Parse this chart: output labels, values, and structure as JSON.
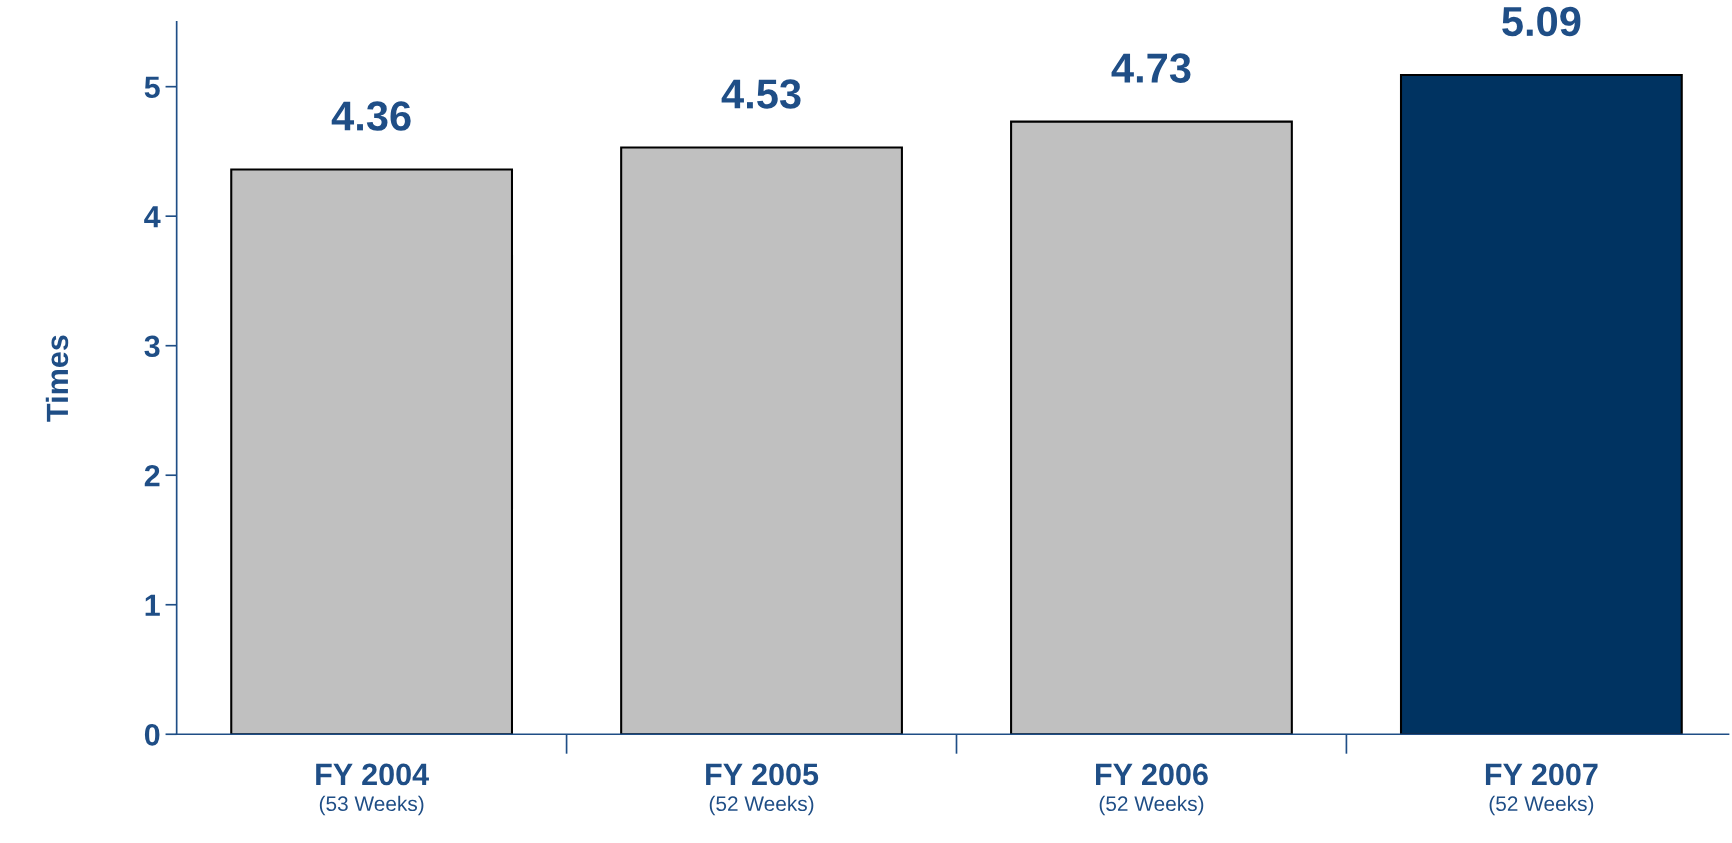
{
  "chart_data": {
    "type": "bar",
    "ylabel": "Times",
    "categories": [
      "FY 2004\n(53 Weeks)",
      "FY 2005\n(52 Weeks)",
      "FY 2006\n(52 Weeks)",
      "FY 2007\n(52 Weeks)"
    ],
    "values": [
      4.36,
      4.53,
      4.73,
      5.09
    ],
    "colors": [
      "#c0c0c0",
      "#c0c0c0",
      "#c0c0c0",
      "#003361"
    ],
    "ylim": [
      0,
      5.5
    ],
    "yticks": [
      0,
      1,
      2,
      3,
      4,
      5
    ],
    "data_labels": true,
    "grid": false,
    "legend": false
  }
}
